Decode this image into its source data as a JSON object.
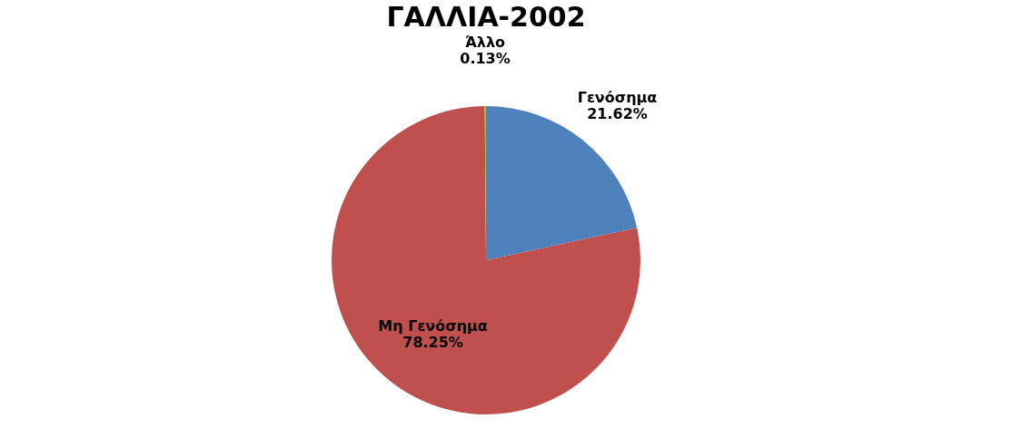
{
  "chart_data": {
    "type": "pie",
    "title": "ΓΑΛΛΙΑ-2002",
    "categories": [
      "Γενόσημα",
      "Μη Γενόσημα",
      "Άλλο"
    ],
    "values": [
      21.62,
      78.25,
      0.13
    ],
    "colors": [
      "#4f81bd",
      "#c0504d",
      "#9bbb59"
    ],
    "value_labels": [
      "21.62%",
      "78.25%",
      "0.13%"
    ],
    "legend": false
  }
}
